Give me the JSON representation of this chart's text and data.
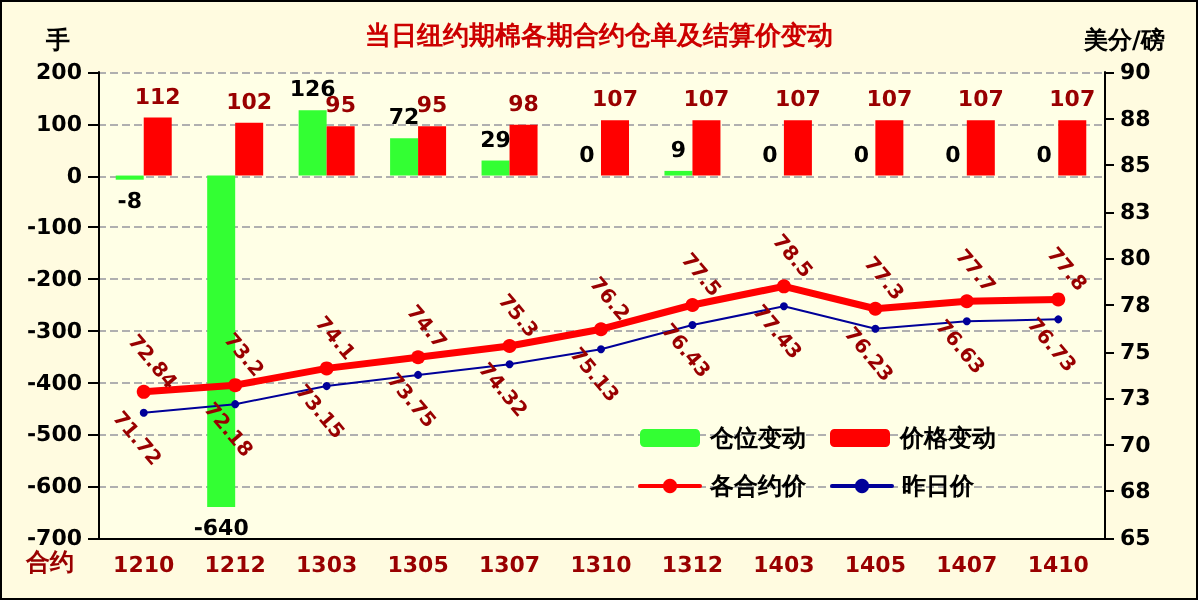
{
  "chart_data": {
    "type": "bar",
    "title": "当日纽约期棉各期合约仓单及结算价变动",
    "xlabel": "合约",
    "ylabel": "手",
    "y2label": "美分/磅",
    "categories": [
      "1210",
      "1212",
      "1303",
      "1305",
      "1307",
      "1310",
      "1312",
      "1403",
      "1405",
      "1407",
      "1410"
    ],
    "series": [
      {
        "name": "仓位变动",
        "color": "#33ff33",
        "values": [
          -8,
          -640,
          126,
          72,
          29,
          0,
          9,
          0,
          0,
          0,
          0
        ]
      },
      {
        "name": "价格变动",
        "color": "#ff0000",
        "values": [
          112,
          102,
          95,
          95,
          98,
          107,
          107,
          107,
          107,
          107,
          107
        ]
      },
      {
        "name": "各合约价",
        "type": "line",
        "axis": "y2",
        "color": "#ff0000",
        "marker": "circle",
        "values": [
          72.84,
          73.2,
          74.1,
          74.7,
          75.3,
          76.2,
          77.5,
          78.5,
          77.3,
          77.7,
          77.8
        ]
      },
      {
        "name": "昨日价",
        "type": "line",
        "axis": "y2",
        "color": "#000099",
        "marker": "circle",
        "values": [
          71.72,
          72.18,
          73.15,
          73.75,
          74.32,
          75.13,
          76.43,
          77.43,
          76.23,
          76.63,
          76.73
        ]
      }
    ],
    "ylim": [
      -700,
      200
    ],
    "yticks": [
      -700,
      -600,
      -500,
      -400,
      -300,
      -200,
      -100,
      0,
      100,
      200
    ],
    "y2lim": [
      65,
      90
    ],
    "y2ticks": [
      65,
      {
        "value": 67.5,
        "label": "68"
      },
      70,
      {
        "value": 72.5,
        "label": "73"
      },
      75,
      {
        "value": 77.5,
        "label": "78"
      },
      80,
      {
        "value": 82.5,
        "label": "83"
      },
      85,
      {
        "value": 87.5,
        "label": "88"
      },
      90
    ],
    "grid": "y",
    "legend": "bottom right",
    "data_labels": true,
    "line_style": "solid"
  }
}
